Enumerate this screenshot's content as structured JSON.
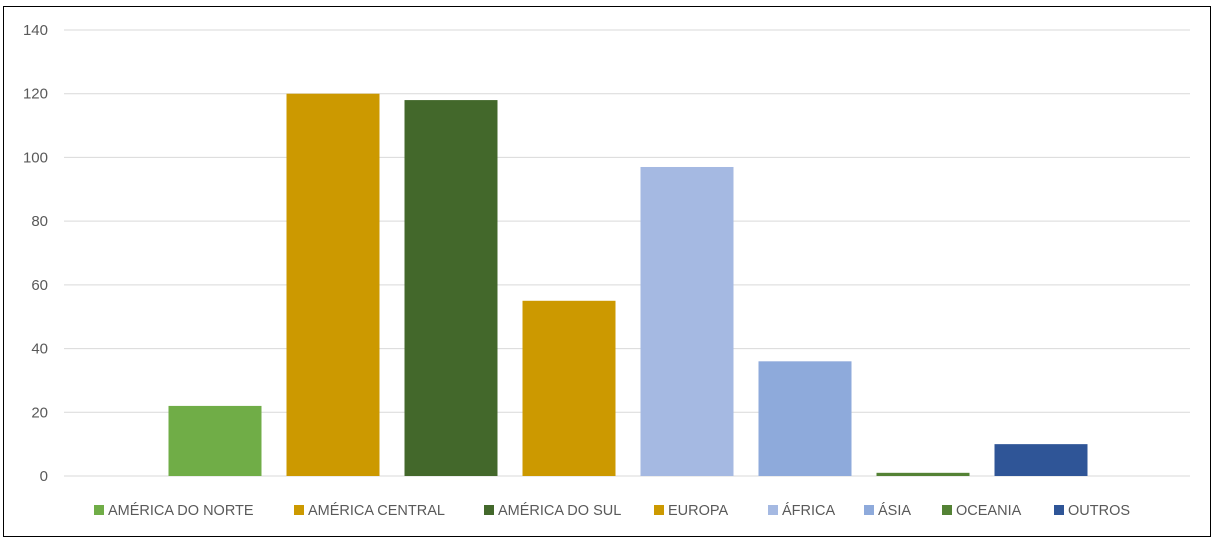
{
  "chart_data": {
    "type": "bar",
    "title": "",
    "xlabel": "",
    "ylabel": "",
    "ylim": [
      0,
      140
    ],
    "yticks": [
      0,
      20,
      40,
      60,
      80,
      100,
      120,
      140
    ],
    "grid": true,
    "legend_position": "bottom",
    "series": [
      {
        "name": "AMÉRICA DO NORTE",
        "value": 22,
        "color": "#70AD47"
      },
      {
        "name": "AMÉRICA CENTRAL",
        "value": 120,
        "color": "#CC9900"
      },
      {
        "name": "AMÉRICA DO SUL",
        "value": 118,
        "color": "#43682B"
      },
      {
        "name": "EUROPA",
        "value": 55,
        "color": "#CC9900"
      },
      {
        "name": "ÁFRICA",
        "value": 97,
        "color": "#A5B9E2"
      },
      {
        "name": "ÁSIA",
        "value": 36,
        "color": "#8EAADB"
      },
      {
        "name": "OCEANIA",
        "value": 1,
        "color": "#548235"
      },
      {
        "name": "OUTROS",
        "value": 10,
        "color": "#2F5597"
      }
    ]
  }
}
